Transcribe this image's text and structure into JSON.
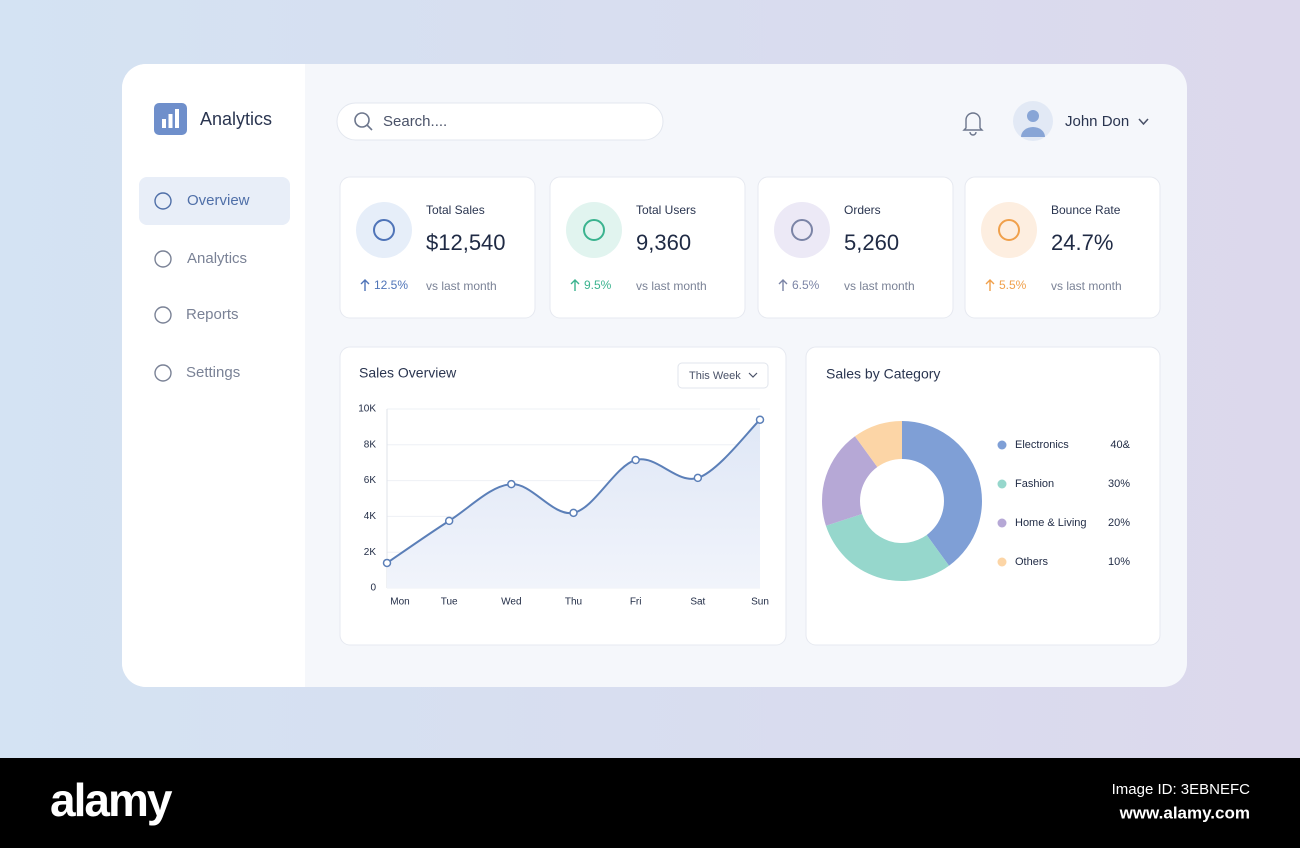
{
  "brand": "Analytics",
  "search_placeholder": "Search....",
  "user_name": "John Don",
  "nav": [
    "Overview",
    "Analytics",
    "Reports",
    "Settings"
  ],
  "active_nav": 0,
  "stats": [
    {
      "title": "Total Sales",
      "value": "$12,540",
      "change": "12.5%",
      "note": "vs last month",
      "color": "#4f74b8",
      "bg": "#e6eef9"
    },
    {
      "title": "Total Users",
      "value": "9,360",
      "change": "9.5%",
      "note": "vs last month",
      "color": "#3bb38f",
      "bg": "#e1f4ef"
    },
    {
      "title": "Orders",
      "value": "5,260",
      "change": "6.5%",
      "note": "vs last month",
      "color": "#7b84a6",
      "bg": "#ece9f6"
    },
    {
      "title": "Bounce Rate",
      "value": "24.7%",
      "change": "5.5%",
      "note": "vs last month",
      "color": "#f0a04b",
      "bg": "#fdeee0"
    }
  ],
  "sales_filter": "This Week",
  "chart_data": [
    {
      "type": "line",
      "title": "Sales Overview",
      "categories": [
        "Mon",
        "Tue",
        "Wed",
        "Thu",
        "Fri",
        "Sat",
        "Sun"
      ],
      "values": [
        1400,
        3750,
        5800,
        4200,
        7150,
        6150,
        9400
      ],
      "color": "#5b7fb8",
      "ylim": [
        0,
        10000
      ],
      "yticks": [
        0,
        {
          "value": 2000,
          "label": "2K"
        },
        {
          "value": 4000,
          "label": "4K"
        },
        {
          "value": 6000,
          "label": "6K"
        },
        {
          "value": 8000,
          "label": "8K"
        },
        {
          "value": 10000,
          "label": "10K"
        }
      ],
      "grid": true
    },
    {
      "type": "donut",
      "title": "Sales by Category",
      "categories": [
        "Electronics",
        "Fashion",
        "Home & Living",
        "Others"
      ],
      "values": [
        40,
        30,
        20,
        10
      ],
      "value_labels": [
        "40&",
        "30%",
        "20%",
        "10%"
      ],
      "colors": [
        "#7f9fd6",
        "#96d7cc",
        "#b6a8d6",
        "#fcd5a6"
      ]
    }
  ],
  "footer": {
    "logo": "alamy",
    "image_id": "Image ID: 3EBNEFC",
    "site": "www.alamy.com"
  }
}
